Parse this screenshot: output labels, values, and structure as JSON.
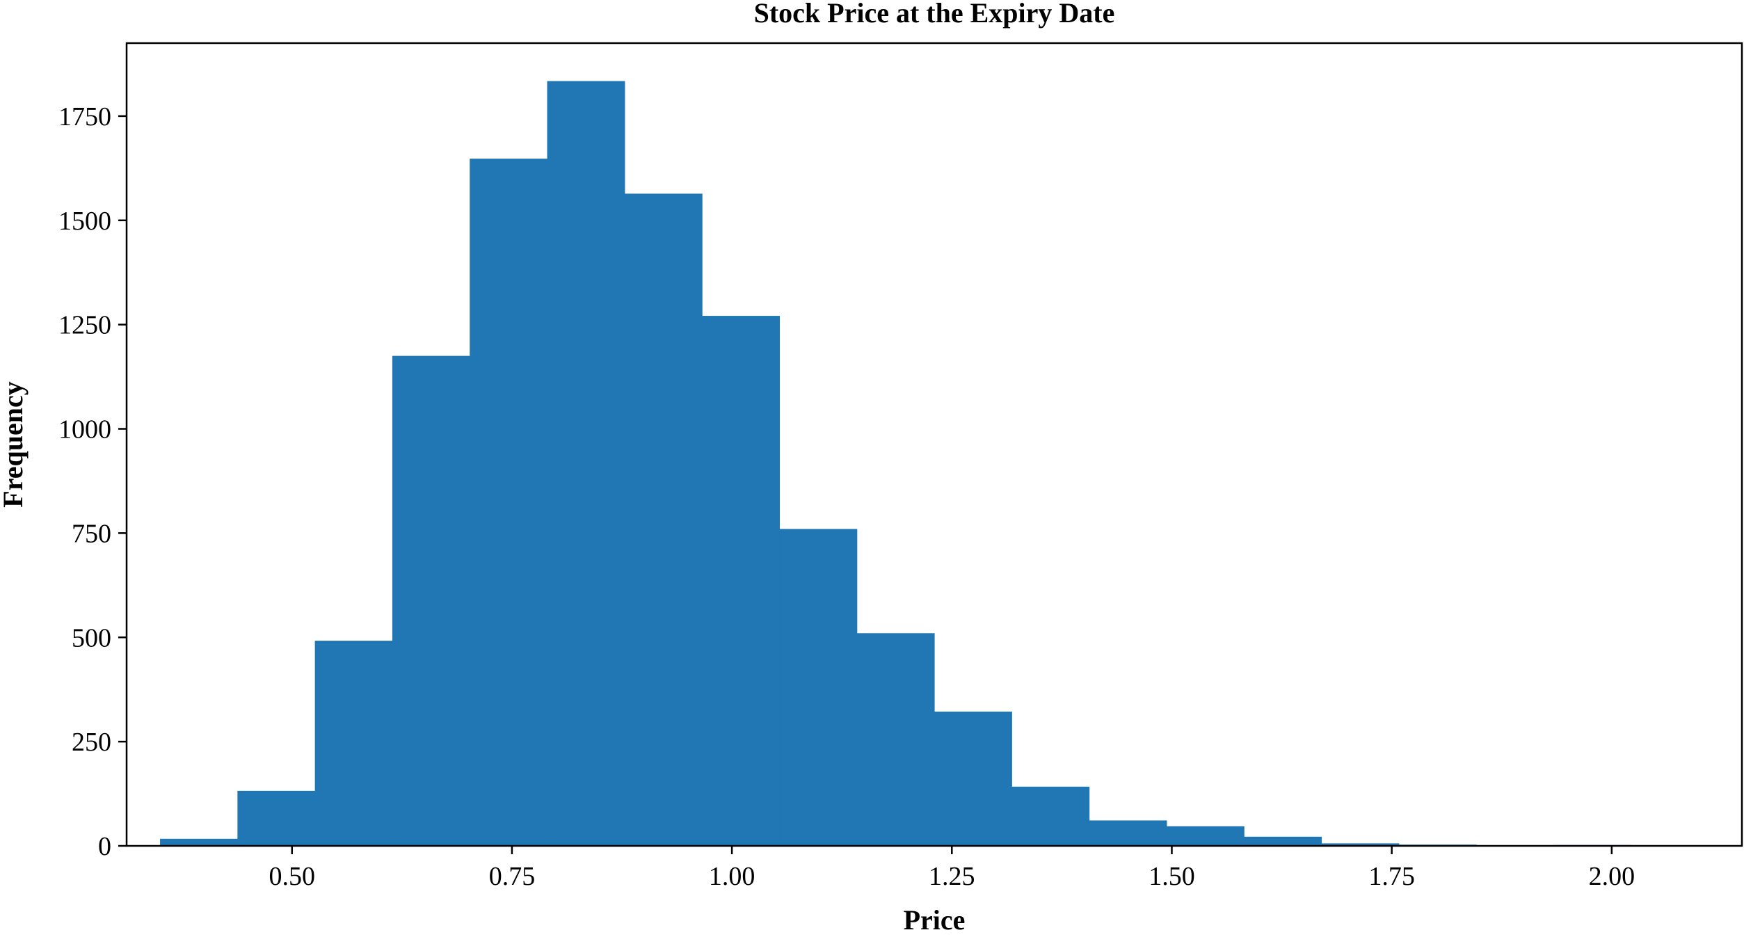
{
  "chart_data": {
    "type": "bar",
    "title": "Stock Price at the Expiry Date",
    "xlabel": "Price",
    "ylabel": "Frequency",
    "bin_edges": [
      0.35,
      0.438,
      0.526,
      0.614,
      0.702,
      0.79,
      0.878,
      0.966,
      1.054,
      1.142,
      1.23,
      1.318,
      1.406,
      1.494,
      1.582,
      1.67,
      1.758,
      1.846,
      1.934,
      2.022,
      2.11
    ],
    "values": [
      17,
      132,
      492,
      1175,
      1648,
      1834,
      1564,
      1271,
      760,
      510,
      322,
      142,
      61,
      47,
      22,
      6,
      3,
      0,
      2,
      0
    ],
    "xlim": [
      0.312,
      2.148
    ],
    "ylim": [
      0,
      1925
    ],
    "xticks": [
      0.5,
      0.75,
      1.0,
      1.25,
      1.5,
      1.75,
      2.0
    ],
    "xtick_labels": [
      "0.50",
      "0.75",
      "1.00",
      "1.25",
      "1.50",
      "1.75",
      "2.00"
    ],
    "yticks": [
      0,
      250,
      500,
      750,
      1000,
      1250,
      1500,
      1750
    ],
    "ytick_labels": [
      "0",
      "250",
      "500",
      "750",
      "1000",
      "1250",
      "1500",
      "1750"
    ],
    "grid": false,
    "bar_color": "#2077b4"
  }
}
